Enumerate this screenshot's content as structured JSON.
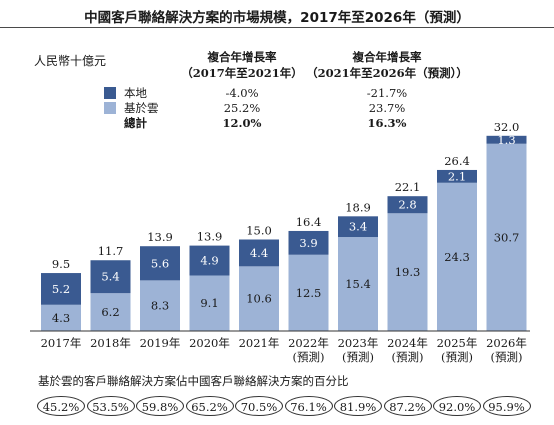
{
  "title": "中國客戶聯絡解決方案的市場規模，2017年至2026年（預測）",
  "unit": "人民幣十億元",
  "cagr": {
    "headers": [
      {
        "line1": "複合年增長率",
        "line2": "（2017年至2021年）"
      },
      {
        "line1": "複合年增長率",
        "line2": "（2021年至2026年（預測））"
      }
    ],
    "rows": [
      {
        "label": "本地",
        "values": [
          "-4.0%",
          "-21.7%"
        ],
        "bold": false,
        "color": "#3a5a91"
      },
      {
        "label": "基於雲",
        "values": [
          "25.2%",
          "23.7%"
        ],
        "bold": false,
        "color": "#9db3d6"
      },
      {
        "label": "總計",
        "values": [
          "12.0%",
          "16.3%"
        ],
        "bold": true,
        "color": null
      }
    ]
  },
  "chart_data": {
    "type": "bar",
    "stacked": true,
    "categories": [
      [
        "2017年"
      ],
      [
        "2018年"
      ],
      [
        "2019年"
      ],
      [
        "2020年"
      ],
      [
        "2021年"
      ],
      [
        "2022年",
        "(預測)"
      ],
      [
        "2023年",
        "(預測)"
      ],
      [
        "2024年",
        "(預測)"
      ],
      [
        "2025年",
        "(預測)"
      ],
      [
        "2026年",
        "(預測)"
      ]
    ],
    "series": [
      {
        "name": "基於雲",
        "color": "#9db3d6",
        "values": [
          4.3,
          6.2,
          8.3,
          9.1,
          10.6,
          12.5,
          15.4,
          19.3,
          24.3,
          30.7
        ]
      },
      {
        "name": "本地",
        "color": "#3a5a91",
        "values": [
          5.2,
          5.4,
          5.6,
          4.9,
          4.4,
          3.9,
          3.4,
          2.8,
          2.1,
          1.3
        ]
      }
    ],
    "totals": [
      "9.5",
      "11.7",
      "13.9",
      "13.9",
      "15.0",
      "16.4",
      "18.9",
      "22.1",
      "26.4",
      "32.0"
    ],
    "ylim": [
      0,
      32
    ]
  },
  "share": {
    "title": "基於雲的客戶聯絡解決方案佔中國客戶聯絡解決方案的百分比",
    "values": [
      "45.2%",
      "53.5%",
      "59.8%",
      "65.2%",
      "70.5%",
      "76.1%",
      "81.9%",
      "87.2%",
      "92.0%",
      "95.9%"
    ]
  }
}
